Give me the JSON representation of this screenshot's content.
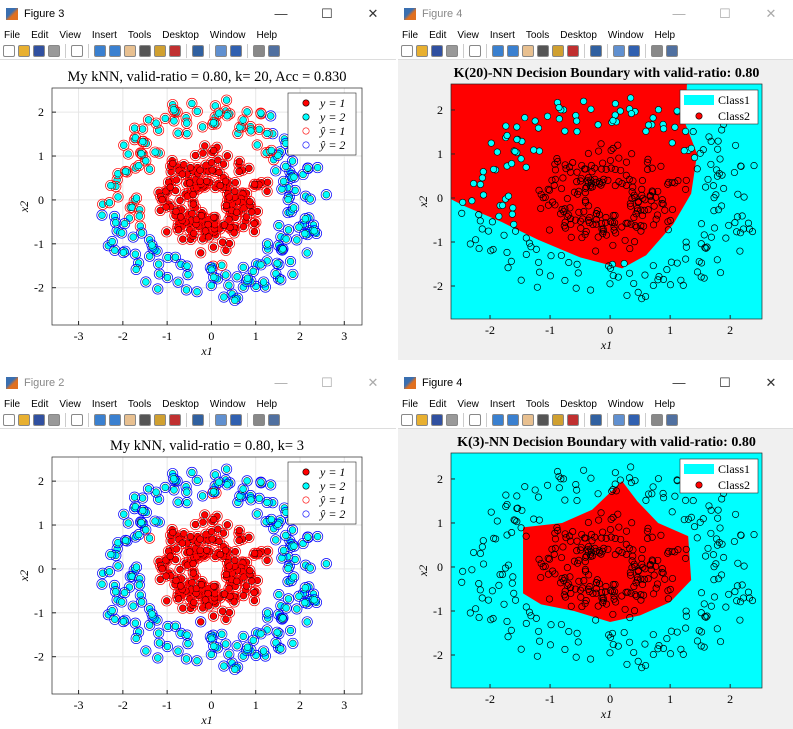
{
  "menu": [
    "File",
    "Edit",
    "View",
    "Insert",
    "Tools",
    "Desktop",
    "Window",
    "Help"
  ],
  "toolbar_icons": [
    "new-file-icon",
    "open-folder-icon",
    "save-icon",
    "print-icon",
    "pointer-icon",
    "zoom-in-icon",
    "zoom-out-icon",
    "pan-hand-icon",
    "rotate-3d-icon",
    "data-cursor-icon",
    "brush-icon",
    "link-plot-icon",
    "colorbar-icon",
    "legend-icon",
    "hide-plot-tools-icon",
    "show-plot-tools-icon"
  ],
  "window_controls": [
    "—",
    "☐",
    "✕"
  ],
  "colors": {
    "class1": "#ff0000",
    "class2": "#00ffff",
    "pred2": "#0000ff"
  },
  "windows": [
    {
      "title": "Figure 3",
      "active": true
    },
    {
      "title": "Figure 4",
      "active": false
    },
    {
      "title": "Figure 2",
      "active": false
    },
    {
      "title": "Figure 4",
      "active": true
    }
  ],
  "chart_data": [
    {
      "type": "scatter",
      "title": "My kNN, valid-ratio = 0.80, k= 20, Acc = 0.830",
      "xlabel": "x1",
      "ylabel": "x2",
      "xlim": [
        -3.6,
        3.4
      ],
      "ylim": [
        -2.85,
        2.55
      ],
      "xticks": [
        -3,
        -2,
        -1,
        0,
        1,
        2,
        3
      ],
      "yticks": [
        -2,
        -1,
        0,
        1,
        2
      ],
      "grid": true,
      "legend": [
        "y = 1",
        "y = 2",
        "ŷ = 1",
        "ŷ = 2"
      ],
      "legend_position": "top-right",
      "k": 20
    },
    {
      "type": "scatter",
      "title": "K(20)-NN Decision Boundary with valid-ratio: 0.80",
      "xlabel": "x1",
      "ylabel": "x2",
      "xlim": [
        -2.65,
        2.53
      ],
      "ylim": [
        -2.75,
        2.59
      ],
      "xticks": [
        -2,
        -1,
        0,
        1,
        2
      ],
      "yticks": [
        -2,
        -1,
        0,
        1,
        2
      ],
      "grid": false,
      "legend": [
        "Class1",
        "Class2"
      ],
      "legend_position": "top-right",
      "class2_region": [
        [
          -2.65,
          2.59
        ],
        [
          1.28,
          2.59
        ],
        [
          1.25,
          1.7
        ],
        [
          1.45,
          1.0
        ],
        [
          1.35,
          0.1
        ],
        [
          1.05,
          -0.6
        ],
        [
          0.6,
          -1.3
        ],
        [
          0.2,
          -1.6
        ],
        [
          -0.5,
          -1.35
        ],
        [
          -1.2,
          -0.95
        ],
        [
          -1.8,
          -0.55
        ],
        [
          -2.4,
          -0.2
        ],
        [
          -2.65,
          -0.03
        ]
      ]
    },
    {
      "type": "scatter",
      "title": "My kNN, valid-ratio = 0.80, k= 3",
      "xlabel": "x1",
      "ylabel": "x2",
      "xlim": [
        -3.6,
        3.4
      ],
      "ylim": [
        -2.85,
        2.55
      ],
      "xticks": [
        -3,
        -2,
        -1,
        0,
        1,
        2,
        3
      ],
      "yticks": [
        -2,
        -1,
        0,
        1,
        2
      ],
      "grid": true,
      "legend": [
        "y = 1",
        "y = 2",
        "ŷ = 1",
        "ŷ = 2"
      ],
      "legend_position": "top-right",
      "k": 3
    },
    {
      "type": "scatter",
      "title": "K(3)-NN Decision Boundary with valid-ratio: 0.80",
      "xlabel": "x1",
      "ylabel": "x2",
      "xlim": [
        -2.65,
        2.53
      ],
      "ylim": [
        -2.75,
        2.59
      ],
      "xticks": [
        -2,
        -1,
        0,
        1,
        2
      ],
      "yticks": [
        -2,
        -1,
        0,
        1,
        2
      ],
      "grid": false,
      "legend": [
        "Class1",
        "Class2"
      ],
      "legend_position": "top-right",
      "class2_region": [
        [
          -1.45,
          0.9
        ],
        [
          -0.8,
          1.0
        ],
        [
          -0.3,
          1.3
        ],
        [
          0.2,
          1.95
        ],
        [
          0.45,
          1.5
        ],
        [
          0.8,
          1.0
        ],
        [
          1.3,
          0.7
        ],
        [
          1.35,
          -0.3
        ],
        [
          1.0,
          -0.8
        ],
        [
          0.5,
          -1.1
        ],
        [
          0,
          -1.25
        ],
        [
          -0.6,
          -1.0
        ],
        [
          -1.15,
          -0.85
        ],
        [
          -1.45,
          -0.6
        ]
      ]
    }
  ]
}
